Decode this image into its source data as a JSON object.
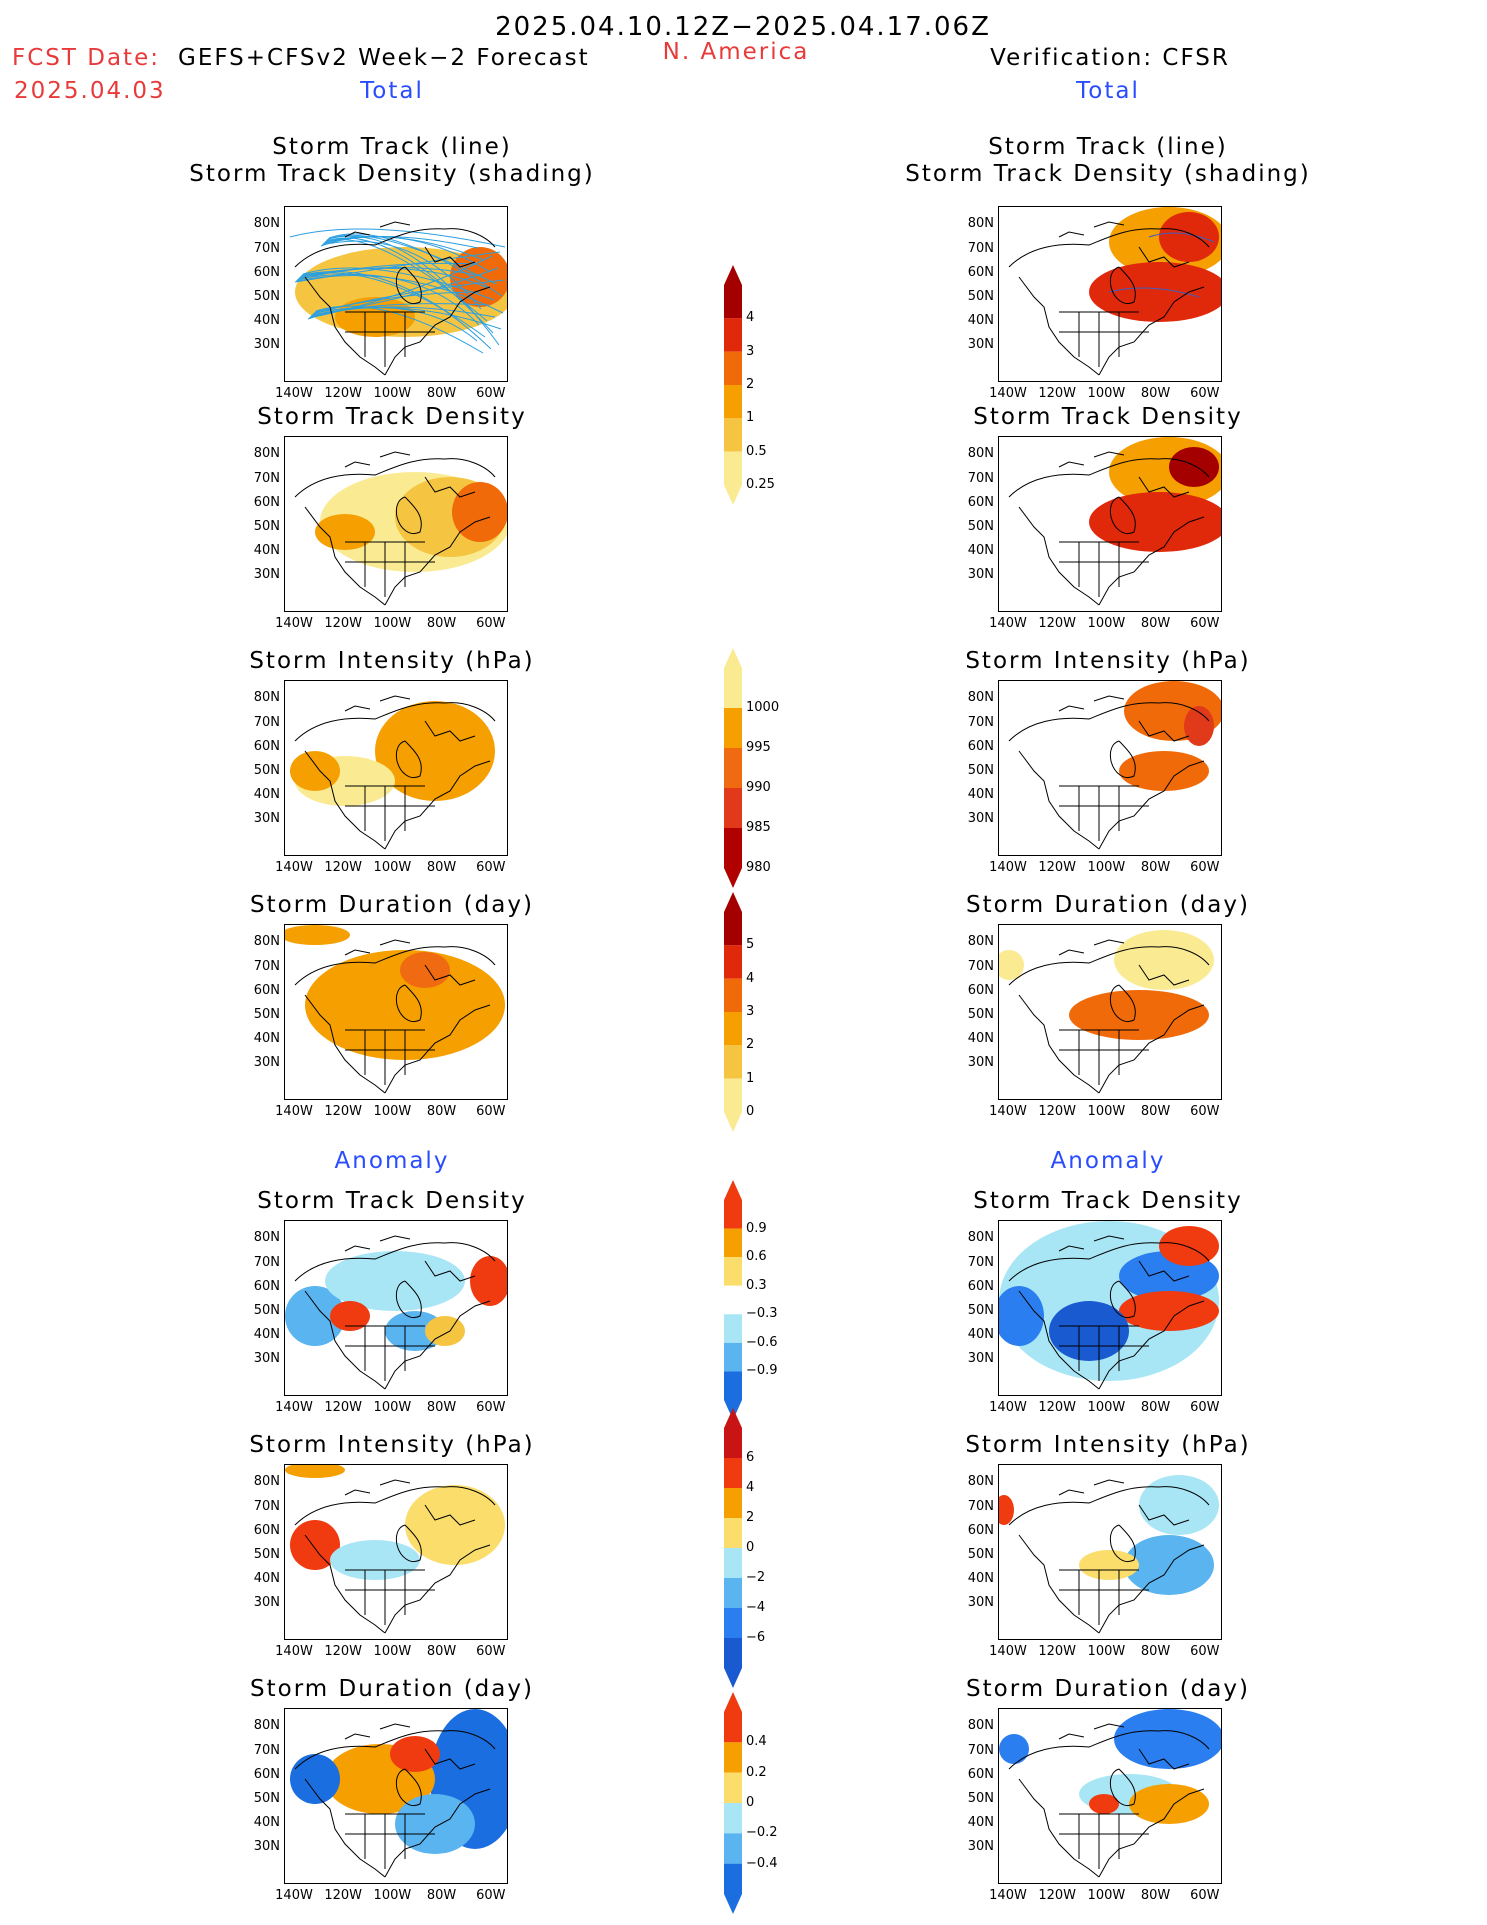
{
  "header": {
    "date_range": "2025.04.10.12Z−2025.04.17.06Z",
    "fcst_label": "FCST Date:",
    "fcst_model": "GEFS+CFSv2 Week−2 Forecast",
    "fcst_date": "2025.04.03",
    "region": "N. America",
    "verification": "Verification: CFSR"
  },
  "section_labels": {
    "total": "Total",
    "anomaly": "Anomaly"
  },
  "axis": {
    "lat_labels": [
      "80N",
      "70N",
      "60N",
      "50N",
      "40N",
      "30N"
    ],
    "lon_labels": [
      "140W",
      "120W",
      "100W",
      "80W",
      "60W"
    ]
  },
  "panel_titles": {
    "track_line": "Storm Track (line)",
    "track_shading": "Storm Track Density (shading)",
    "track_density": "Storm Track Density",
    "intensity": "Storm Intensity (hPa)",
    "duration": "Storm Duration (day)"
  },
  "colorbars": {
    "density": {
      "labels": [
        "4",
        "3",
        "2",
        "1",
        "0.5",
        "0.25"
      ],
      "colors": [
        "#a50000",
        "#e0280a",
        "#f06a0a",
        "#f59f00",
        "#f5c542",
        "#faeb93"
      ]
    },
    "intensity": {
      "labels": [
        "1000",
        "995",
        "990",
        "985",
        "980"
      ],
      "colors": [
        "#faeb93",
        "#f5a000",
        "#ef6a10",
        "#e03a1a",
        "#b00000"
      ]
    },
    "duration": {
      "labels": [
        "5",
        "4",
        "3",
        "2",
        "1",
        "0"
      ],
      "colors": [
        "#a50000",
        "#e0280a",
        "#f06a0a",
        "#f59f00",
        "#f5c542",
        "#faeb93"
      ]
    },
    "anom_density": {
      "labels": [
        "0.9",
        "0.6",
        "0.3",
        "−0.3",
        "−0.6",
        "−0.9"
      ],
      "colors": [
        "#f03a10",
        "#f59f00",
        "#fadd6a",
        "#ffffff",
        "#a9e6f5",
        "#5ab4f0",
        "#1a6ee0"
      ]
    },
    "anom_intensity": {
      "labels": [
        "6",
        "4",
        "2",
        "0",
        "−2",
        "−4",
        "−6"
      ],
      "colors": [
        "#c81414",
        "#f03a10",
        "#f59f00",
        "#fadd6a",
        "#a9e6f5",
        "#5ab4f0",
        "#2a7ef0",
        "#1a5ad0"
      ]
    },
    "anom_duration": {
      "labels": [
        "0.4",
        "0.2",
        "0",
        "−0.2",
        "−0.4"
      ],
      "colors": [
        "#f03a10",
        "#f59f00",
        "#fadd6a",
        "#a9e6f5",
        "#5ab4f0",
        "#1a6ee0"
      ]
    }
  }
}
